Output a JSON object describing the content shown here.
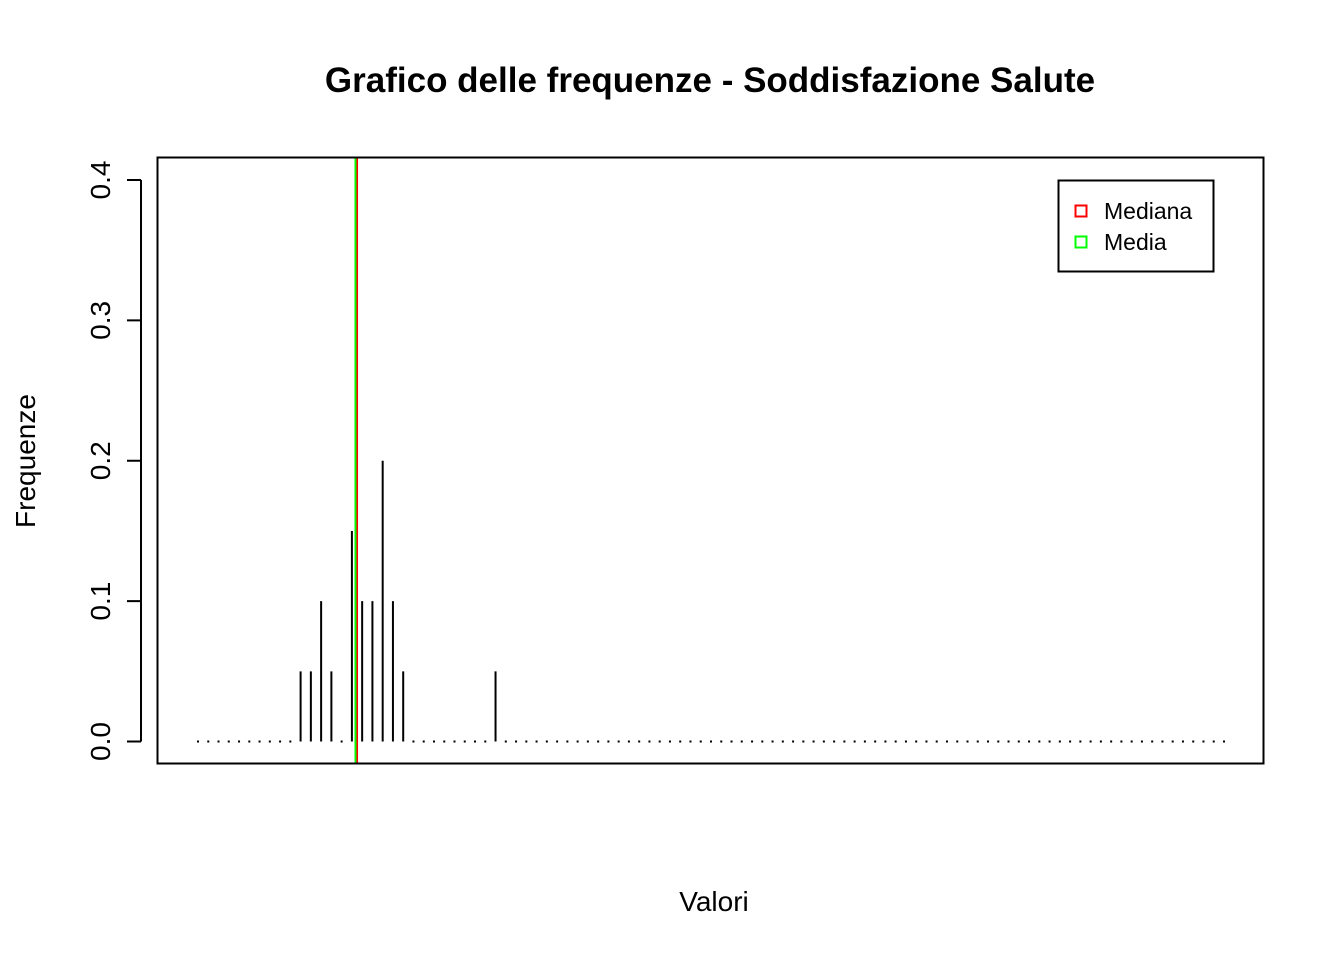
{
  "chart_data": {
    "type": "bar",
    "title": "Grafico delle frequenze - Soddisfazione Salute",
    "xlabel": "Valori",
    "ylabel": "Frequenze",
    "ylim": [
      0,
      0.41
    ],
    "yticks": [
      "0.0",
      "0.1",
      "0.2",
      "0.3",
      "0.4"
    ],
    "ytick_values": [
      0,
      0.1,
      0.2,
      0.3,
      0.4
    ],
    "xlim": [
      0.5,
      101.5
    ],
    "x": [
      1,
      2,
      3,
      4,
      5,
      6,
      7,
      8,
      9,
      10,
      11,
      12,
      13,
      14,
      15,
      16,
      17,
      18,
      19,
      20,
      21,
      22,
      23,
      24,
      25,
      26,
      27,
      28,
      29,
      30,
      31,
      32,
      33,
      34,
      35,
      36,
      37,
      38,
      39,
      40,
      41,
      42,
      43,
      44,
      45,
      46,
      47,
      48,
      49,
      50,
      51,
      52,
      53,
      54,
      55,
      56,
      57,
      58,
      59,
      60,
      61,
      62,
      63,
      64,
      65,
      66,
      67,
      68,
      69,
      70,
      71,
      72,
      73,
      74,
      75,
      76,
      77,
      78,
      79,
      80,
      81,
      82,
      83,
      84,
      85,
      86,
      87,
      88,
      89,
      90,
      91,
      92,
      93,
      94,
      95,
      96,
      97,
      98,
      99,
      100,
      101
    ],
    "values": [
      0,
      0,
      0,
      0,
      0,
      0,
      0,
      0,
      0,
      0,
      0.05,
      0.05,
      0.1,
      0.05,
      0,
      0.15,
      0.1,
      0.1,
      0.2,
      0.1,
      0.05,
      0,
      0,
      0,
      0,
      0,
      0,
      0,
      0,
      0.05,
      0,
      0,
      0,
      0,
      0,
      0,
      0,
      0,
      0,
      0,
      0,
      0,
      0,
      0,
      0,
      0,
      0,
      0,
      0,
      0,
      0,
      0,
      0,
      0,
      0,
      0,
      0,
      0,
      0,
      0,
      0,
      0,
      0,
      0,
      0,
      0,
      0,
      0,
      0,
      0,
      0,
      0,
      0,
      0,
      0,
      0,
      0,
      0,
      0,
      0,
      0,
      0,
      0,
      0,
      0,
      0,
      0,
      0,
      0,
      0,
      0,
      0,
      0,
      0,
      0,
      0,
      0,
      0,
      0,
      0,
      0
    ],
    "vlines": [
      {
        "name": "Mediana",
        "x": 16.5,
        "color": "#ff0000"
      },
      {
        "name": "Media",
        "x": 16.35,
        "color": "#00ff00"
      }
    ],
    "legend": {
      "position": "top-right",
      "items": [
        {
          "label": "Mediana",
          "color": "#ff0000"
        },
        {
          "label": "Media",
          "color": "#00ff00"
        }
      ]
    },
    "grid": false
  }
}
